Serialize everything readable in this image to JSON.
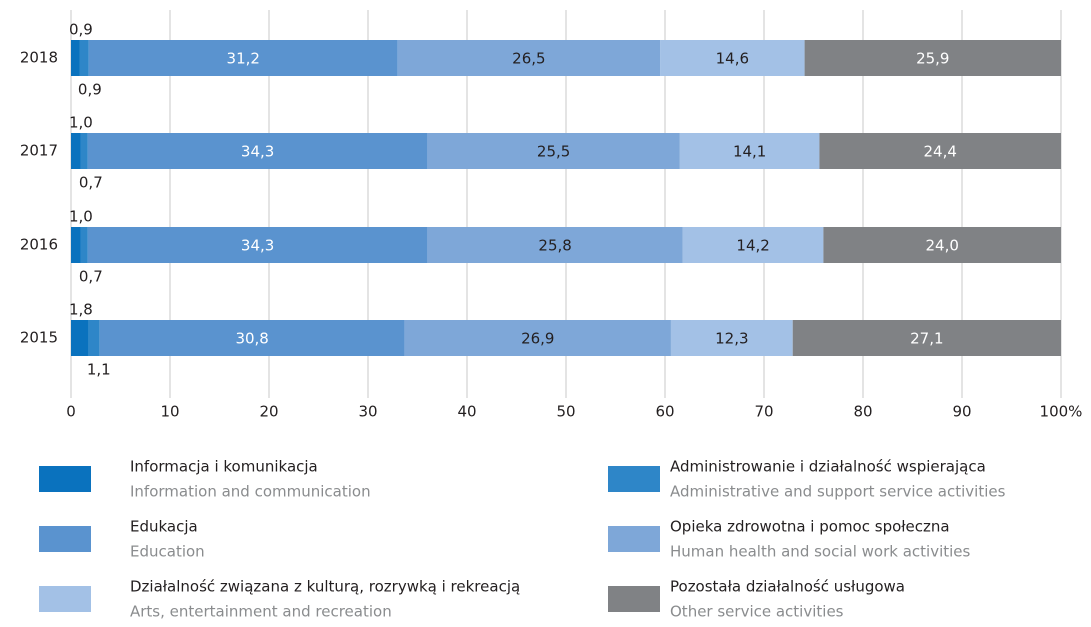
{
  "chart_data": {
    "type": "stacked-bar-horizontal",
    "categories": [
      "2018",
      "2017",
      "2016",
      "2015"
    ],
    "series": [
      {
        "name": "Informacja i komunikacja",
        "name_en": "Information and communication",
        "color": "#0a72be",
        "values": [
          0.9,
          1.0,
          1.0,
          1.8
        ],
        "value_labels": [
          "0,9",
          "1,0",
          "1,0",
          "1,8"
        ]
      },
      {
        "name": "Administrowanie i działalność wspierająca",
        "name_en": "Administrative and support service activities",
        "color": "#2e86c8",
        "values": [
          0.9,
          0.7,
          0.7,
          1.1
        ],
        "value_labels": [
          "0,9",
          "0,7",
          "0,7",
          "1,1"
        ]
      },
      {
        "name": "Edukacja",
        "name_en": "Education",
        "color": "#5a93cf",
        "values": [
          31.2,
          34.3,
          34.3,
          30.8
        ],
        "value_labels": [
          "31,2",
          "34,3",
          "34,3",
          "30,8"
        ]
      },
      {
        "name": "Opieka zdrowotna i pomoc społeczna",
        "name_en": "Human health and social work activities",
        "color": "#7ea7d8",
        "values": [
          26.5,
          25.5,
          25.8,
          26.9
        ],
        "value_labels": [
          "26,5",
          "25,5",
          "25,8",
          "26,9"
        ]
      },
      {
        "name": "Działalność związana z kulturą, rozrywką i rekreacją",
        "name_en": "Arts, entertainment and recreation",
        "color": "#a3c1e6",
        "values": [
          14.6,
          14.1,
          14.2,
          12.3
        ],
        "value_labels": [
          "14,6",
          "14,1",
          "14,2",
          "12,3"
        ]
      },
      {
        "name": "Pozostała działalność usługowa",
        "name_en": "Other service activities",
        "color": "#808285",
        "values": [
          25.9,
          24.4,
          24.0,
          27.1
        ],
        "value_labels": [
          "25,9",
          "24,4",
          "24,0",
          "27,1"
        ]
      }
    ],
    "xlim": [
      0,
      100
    ],
    "xticks": [
      0,
      10,
      20,
      30,
      40,
      50,
      60,
      70,
      80,
      90,
      {
        "value": 100,
        "label": "100%"
      }
    ],
    "grid": true
  }
}
